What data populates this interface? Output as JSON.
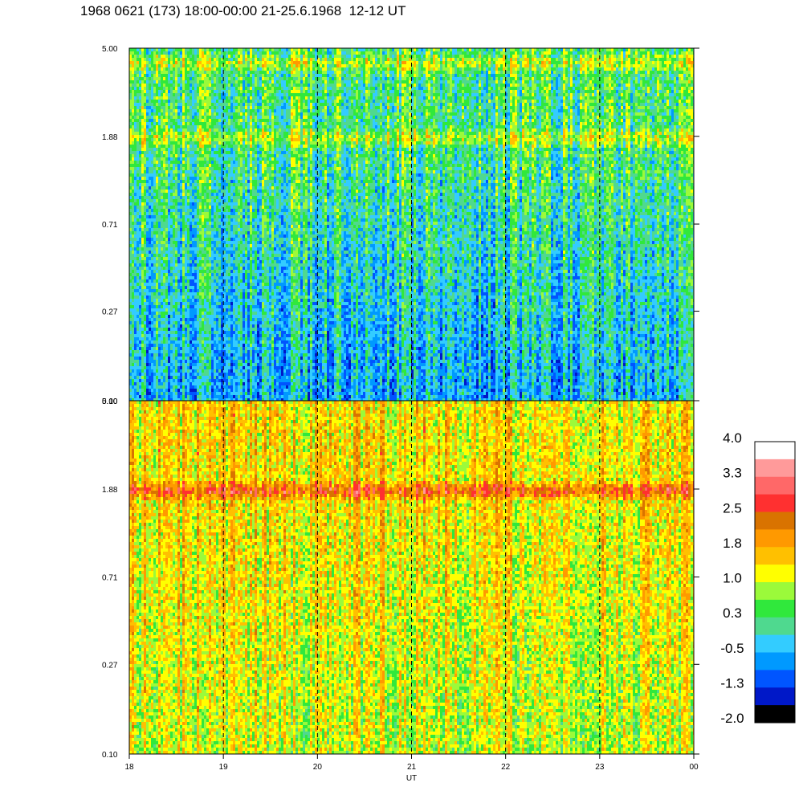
{
  "title": "1968 0621 (173) 18:00-00:00 21-25.6.1968  12-12 UT",
  "chart_data": {
    "type": "heatmap",
    "title": "1968 0621 (173) 18:00-00:00 21-25.6.1968  12-12 UT",
    "xlabel": "UT",
    "ylabel": "",
    "x_ticks": [
      "18",
      "19",
      "20",
      "21",
      "22",
      "23",
      "00"
    ],
    "x_range": [
      18,
      24
    ],
    "y_scale": "log",
    "y_ticks": [
      "0.10",
      "0.27",
      "0.71",
      "1.88",
      "5.00"
    ],
    "y_range": [
      0.1,
      5.0
    ],
    "dashed_vertical_lines_at": [
      "19",
      "20",
      "21",
      "22",
      "23"
    ],
    "panels": [
      {
        "name": "",
        "description": "",
        "features": [
          {
            "type": "band",
            "y": 4.3,
            "level": 1.0
          },
          {
            "type": "band",
            "y": 1.88,
            "level": 1.0
          },
          {
            "type": "background_high",
            "level": 0.3
          },
          {
            "type": "background_low",
            "level": -0.5
          }
        ]
      },
      {
        "name": "",
        "description": "",
        "features": [
          {
            "type": "band",
            "y": 1.88,
            "level": 2.5
          },
          {
            "type": "background_high",
            "level": 1.4
          },
          {
            "type": "background_low",
            "level": 1.0
          }
        ]
      }
    ],
    "colorbar": {
      "labels": [
        "4.0",
        "3.3",
        "2.5",
        "1.8",
        "1.0",
        "0.3",
        "-0.5",
        "-1.3",
        "-2.0"
      ],
      "colors": [
        "#ffffff",
        "#ff9a9a",
        "#ff6868",
        "#ff3030",
        "#d97300",
        "#ff9900",
        "#ffc000",
        "#ffff00",
        "#9bfa3a",
        "#30e83c",
        "#4fd98f",
        "#33ccff",
        "#0099ff",
        "#0055ff",
        "#0018c8",
        "#000000"
      ],
      "range": [
        -2.0,
        4.0
      ]
    }
  }
}
